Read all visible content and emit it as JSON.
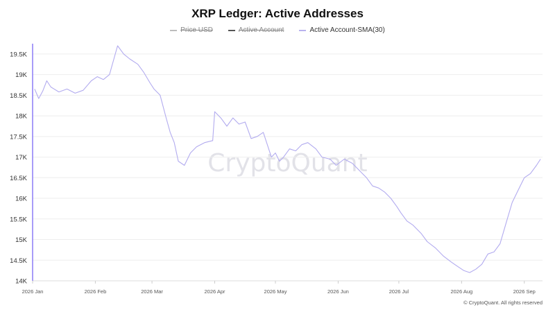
{
  "chart_title": "XRP Ledger: Active Addresses",
  "legend": [
    {
      "label": "Price USD",
      "color": "#bcbcbc",
      "hidden": true
    },
    {
      "label": "Active Account",
      "color": "#555555",
      "hidden": true
    },
    {
      "label": "Active Account-SMA(30)",
      "color": "#b8b2ee",
      "hidden": false
    }
  ],
  "watermark": "CryptoQuant",
  "footer": "© CryptoQuant. All rights reserved",
  "colors": {
    "series": "#b2abef",
    "left_axis": "#8b7cf6",
    "grid": "#eeeeee"
  },
  "chart_data": {
    "type": "line",
    "title": "XRP Ledger: Active Addresses",
    "xlabel": "",
    "ylabel": "",
    "ylim": [
      14000,
      19750
    ],
    "yticks": [
      "14K",
      "14.5K",
      "15K",
      "15.5K",
      "16K",
      "16.5K",
      "17K",
      "17.5K",
      "18K",
      "18.5K",
      "19K",
      "19.5K"
    ],
    "x_range": [
      "2026-01-01",
      "2026-09-10"
    ],
    "xticks": [
      {
        "date": "2026-01-01",
        "label": "2026 Jan"
      },
      {
        "date": "2026-02-01",
        "label": "2026 Feb"
      },
      {
        "date": "2026-03-01",
        "label": "2026 Mar"
      },
      {
        "date": "2026-04-01",
        "label": "2026 Apr"
      },
      {
        "date": "2026-05-01",
        "label": "2026 May"
      },
      {
        "date": "2026-06-01",
        "label": "2026 Jun"
      },
      {
        "date": "2026-07-01",
        "label": "2026 Jul"
      },
      {
        "date": "2026-08-01",
        "label": "2026 Aug"
      },
      {
        "date": "2026-09-01",
        "label": "2026 Sep"
      }
    ],
    "grid": true,
    "series": [
      {
        "name": "Active Account-SMA(30)",
        "x": [
          "2026-01-02",
          "2026-01-04",
          "2026-01-06",
          "2026-01-08",
          "2026-01-10",
          "2026-01-14",
          "2026-01-18",
          "2026-01-22",
          "2026-01-26",
          "2026-01-30",
          "2026-02-02",
          "2026-02-05",
          "2026-02-08",
          "2026-02-12",
          "2026-02-15",
          "2026-02-18",
          "2026-02-22",
          "2026-02-25",
          "2026-02-28",
          "2026-03-02",
          "2026-03-05",
          "2026-03-08",
          "2026-03-10",
          "2026-03-12",
          "2026-03-14",
          "2026-03-17",
          "2026-03-20",
          "2026-03-23",
          "2026-03-27",
          "2026-03-31",
          "2026-04-01",
          "2026-04-04",
          "2026-04-07",
          "2026-04-10",
          "2026-04-13",
          "2026-04-16",
          "2026-04-19",
          "2026-04-22",
          "2026-04-25",
          "2026-04-29",
          "2026-05-01",
          "2026-05-03",
          "2026-05-05",
          "2026-05-08",
          "2026-05-11",
          "2026-05-14",
          "2026-05-17",
          "2026-05-21",
          "2026-05-24",
          "2026-05-28",
          "2026-05-31",
          "2026-06-04",
          "2026-06-08",
          "2026-06-12",
          "2026-06-15",
          "2026-06-18",
          "2026-06-21",
          "2026-06-24",
          "2026-06-27",
          "2026-06-30",
          "2026-07-02",
          "2026-07-05",
          "2026-07-08",
          "2026-07-12",
          "2026-07-15",
          "2026-07-19",
          "2026-07-23",
          "2026-07-27",
          "2026-07-30",
          "2026-08-02",
          "2026-08-05",
          "2026-08-08",
          "2026-08-11",
          "2026-08-14",
          "2026-08-17",
          "2026-08-20",
          "2026-08-23",
          "2026-08-26",
          "2026-08-29",
          "2026-09-01",
          "2026-09-04",
          "2026-09-07",
          "2026-09-09"
        ],
        "values": [
          18650,
          18420,
          18600,
          18850,
          18700,
          18580,
          18650,
          18550,
          18620,
          18850,
          18950,
          18880,
          19000,
          19700,
          19500,
          19380,
          19250,
          19050,
          18800,
          18650,
          18500,
          17950,
          17600,
          17350,
          16900,
          16800,
          17100,
          17250,
          17350,
          17400,
          18100,
          17950,
          17750,
          17950,
          17800,
          17850,
          17450,
          17500,
          17600,
          17000,
          17100,
          16900,
          17000,
          17200,
          17150,
          17300,
          17350,
          17200,
          17000,
          16950,
          16800,
          16950,
          16850,
          16650,
          16500,
          16300,
          16250,
          16150,
          16000,
          15800,
          15650,
          15450,
          15350,
          15150,
          14950,
          14800,
          14600,
          14450,
          14350,
          14250,
          14200,
          14280,
          14400,
          14650,
          14700,
          14900,
          15400,
          15900,
          16200,
          16500,
          16600,
          16800,
          16950
        ]
      }
    ]
  }
}
